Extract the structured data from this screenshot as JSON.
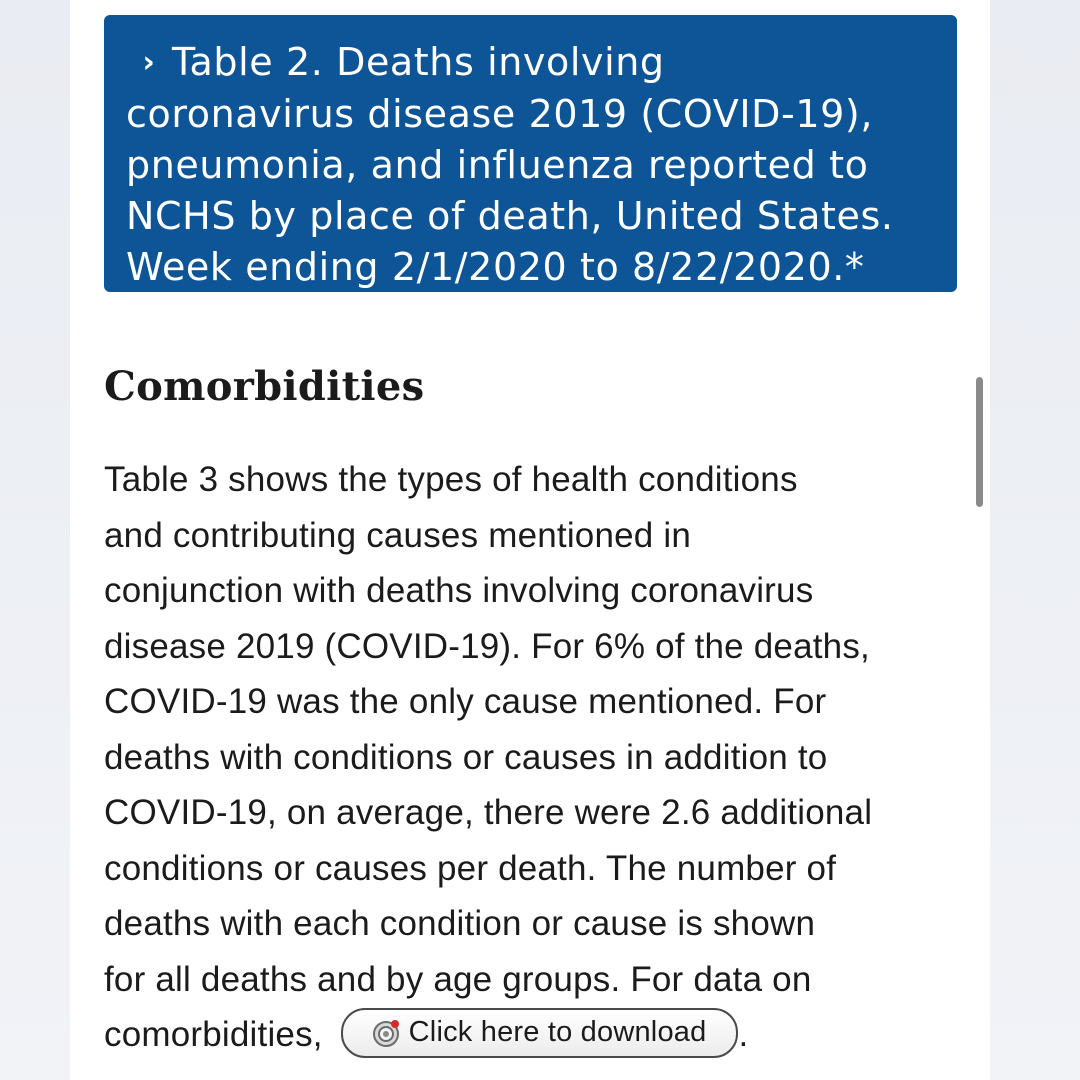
{
  "accordion": {
    "chevron": "›",
    "title_lines": [
      "Table 2. Deaths involving",
      "coronavirus disease 2019 (COVID-19),",
      "pneumonia, and influenza reported to",
      "NCHS by place of death, United States.",
      "Week ending 2/1/2020 to 8/22/2020.*"
    ],
    "color": "#0e5597"
  },
  "section": {
    "heading": "Comorbidities",
    "paragraph_lines": [
      "Table 3 shows the types of health conditions",
      "and contributing causes mentioned in",
      "conjunction with deaths involving coronavirus",
      "disease 2019 (COVID-19). For 6% of the deaths,",
      "COVID-19 was the only cause mentioned. For",
      "deaths with conditions or causes in addition to",
      "COVID-19, on average, there were 2.6 additional",
      "conditions or causes per death. The number of",
      "deaths with each condition or cause is shown",
      "for all deaths and by age groups. For data on"
    ],
    "last_line_prefix": "comorbidities,",
    "last_line_suffix": ".",
    "download_button_label": "Click here to download",
    "download_icon": "download-icon"
  }
}
